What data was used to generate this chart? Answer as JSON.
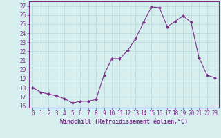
{
  "x": [
    0,
    1,
    2,
    3,
    4,
    5,
    6,
    7,
    8,
    9,
    10,
    11,
    12,
    13,
    14,
    15,
    16,
    17,
    18,
    19,
    20,
    21,
    22,
    23
  ],
  "y": [
    18.0,
    17.5,
    17.3,
    17.1,
    16.8,
    16.3,
    16.5,
    16.5,
    16.7,
    19.4,
    21.2,
    21.2,
    22.1,
    23.4,
    25.2,
    26.9,
    26.8,
    24.7,
    25.3,
    25.9,
    25.2,
    21.3,
    19.4,
    19.1
  ],
  "line_color": "#7b2d8b",
  "marker": "D",
  "marker_size": 2.0,
  "bg_color": "#d6eeee",
  "grid_color": "#b8d8d8",
  "xlabel": "Windchill (Refroidissement éolien,°C)",
  "xlabel_color": "#7b2d8b",
  "xlabel_fontsize": 6.0,
  "ylabel_ticks": [
    16,
    17,
    18,
    19,
    20,
    21,
    22,
    23,
    24,
    25,
    26,
    27
  ],
  "xlim": [
    -0.5,
    23.5
  ],
  "ylim": [
    15.8,
    27.5
  ],
  "tick_color": "#7b2d8b",
  "tick_fontsize": 5.5,
  "spine_color": "#7b2d8b",
  "line_width": 0.8
}
